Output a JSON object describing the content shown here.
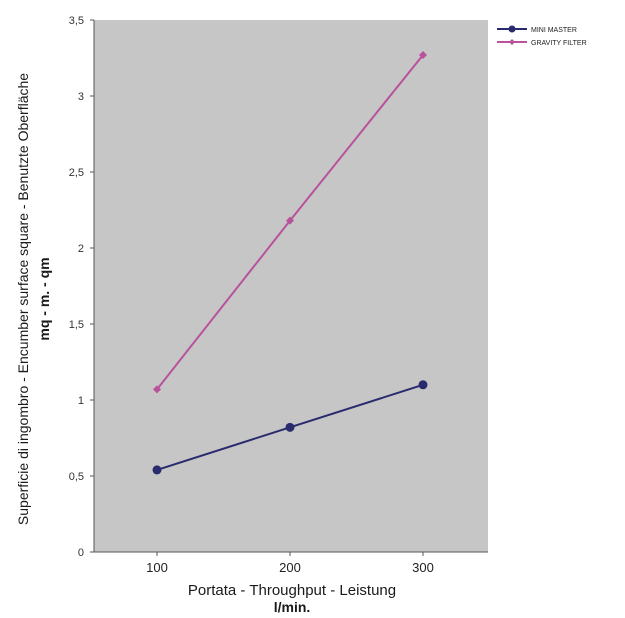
{
  "chart_data": {
    "type": "line",
    "categories": [
      "100",
      "200",
      "300"
    ],
    "series": [
      {
        "name": "MINI MASTER",
        "values": [
          0.54,
          0.82,
          1.1
        ],
        "color": "#2a2a6e",
        "marker": "circle"
      },
      {
        "name": "GRAVITY FILTER",
        "values": [
          1.07,
          2.18,
          3.27
        ],
        "color": "#b8529c",
        "marker": "diamond"
      }
    ],
    "xlabel": "Portata - Throughput - Leistung",
    "xlabel_unit": "l/min.",
    "ylabel": "Superficie di ingombro - Encumber surface square - Benutzte Oberfläche",
    "ylabel_unit": "mq - m. - qm",
    "ylim": [
      0,
      3.5
    ],
    "yticks": [
      "0",
      "0,5",
      "1",
      "1,5",
      "2",
      "2,5",
      "3",
      "3,5"
    ],
    "grid": false,
    "legend_position": "top-right",
    "plot_background": "#c6c6c6"
  }
}
